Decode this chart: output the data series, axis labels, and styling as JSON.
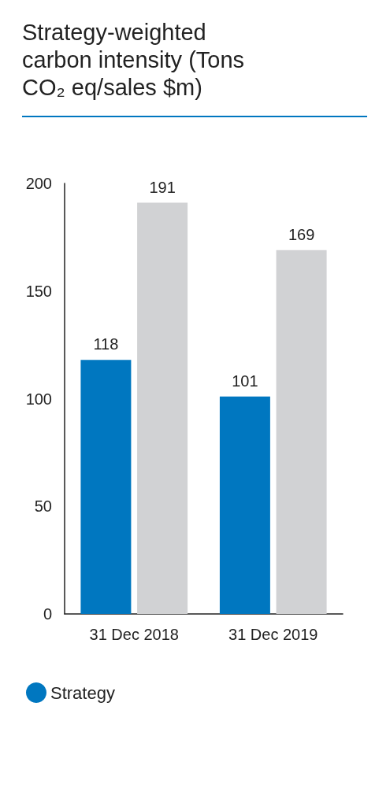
{
  "chart_data": {
    "type": "bar",
    "title": "Strategy-weighted carbon intensity (Tons CO₂ eq/sales $m)",
    "categories": [
      "31 Dec 2018",
      "31 Dec 2019"
    ],
    "series": [
      {
        "name": "Strategy",
        "color": "#0077c0",
        "values": [
          118,
          101
        ]
      },
      {
        "color": "#d1d2d4",
        "values": [
          191,
          169
        ]
      }
    ],
    "ylim": [
      0,
      200
    ],
    "yticks": [
      0,
      50,
      100,
      150,
      200
    ],
    "grid": false,
    "data_labels": true,
    "legend": "bottom left"
  }
}
